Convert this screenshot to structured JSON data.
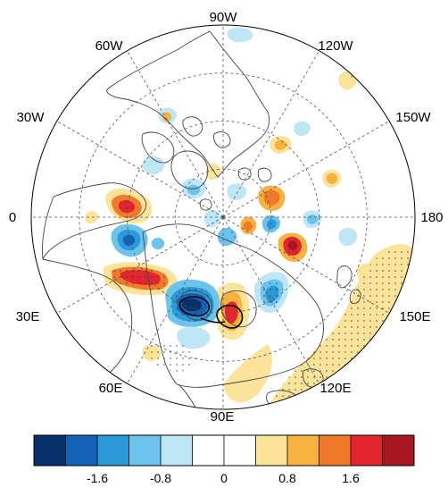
{
  "map": {
    "projection": "north-polar-stereographic",
    "longitude_labels": [
      "90W",
      "120W",
      "150W",
      "180",
      "150E",
      "120E",
      "90E",
      "60E",
      "30E",
      "0",
      "30W",
      "60W"
    ],
    "grid": "dashed",
    "colors": {
      "outline": "#000000",
      "grid": "#555555",
      "coast": "#444444",
      "stipple": "#333333",
      "contour": "#000000"
    }
  },
  "colorbar": {
    "tick_labels": [
      "-1.6",
      "-0.8",
      "0",
      "0.8",
      "1.6"
    ],
    "tick_values": [
      -1.6,
      -0.8,
      0,
      0.8,
      1.6
    ],
    "min": -2.4,
    "max": 2.4,
    "colors": [
      "#08306b",
      "#1462b8",
      "#2c9ad8",
      "#6cc3ec",
      "#bfe6f7",
      "#ffffff",
      "#ffffff",
      "#fbe39a",
      "#f6b13f",
      "#f07a2a",
      "#e3262d",
      "#a8161f"
    ]
  }
}
